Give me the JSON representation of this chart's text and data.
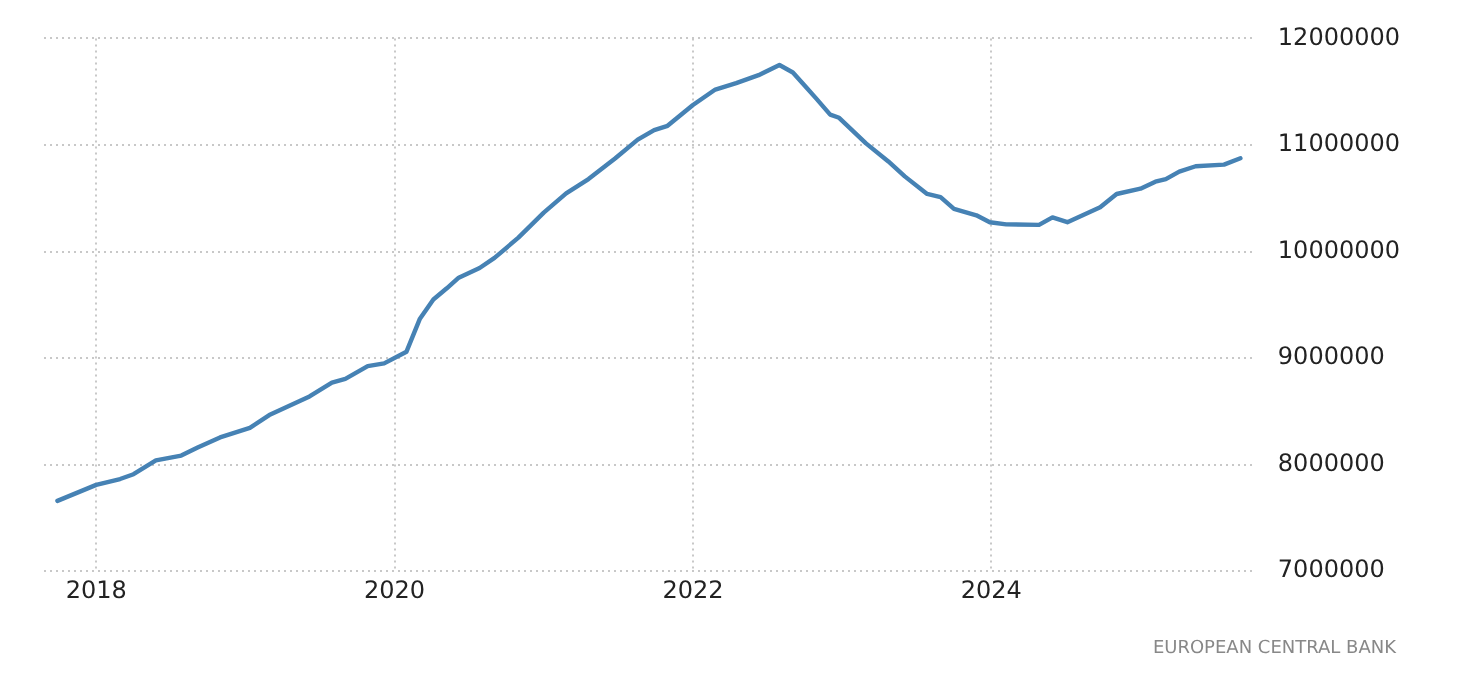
{
  "chart_data": {
    "type": "line",
    "x": [
      2017.74,
      2018.0,
      2018.16,
      2018.25,
      2018.4,
      2018.57,
      2018.68,
      2018.83,
      2019.03,
      2019.16,
      2019.43,
      2019.58,
      2019.67,
      2019.82,
      2019.93,
      2020.08,
      2020.17,
      2020.26,
      2020.35,
      2020.43,
      2020.57,
      2020.67,
      2020.83,
      2021.0,
      2021.15,
      2021.3,
      2021.48,
      2021.63,
      2021.74,
      2021.83,
      2022.0,
      2022.15,
      2022.29,
      2022.44,
      2022.58,
      2022.67,
      2022.75,
      2022.83,
      2022.92,
      2022.98,
      2023.16,
      2023.31,
      2023.42,
      2023.57,
      2023.66,
      2023.75,
      2023.9,
      2023.99,
      2024.1,
      2024.32,
      2024.41,
      2024.51,
      2024.73,
      2024.84,
      2025.0,
      2025.1,
      2025.17,
      2025.26,
      2025.37,
      2025.56,
      2025.67
    ],
    "series": [
      {
        "color": "#4682b4",
        "values": [
          7660000,
          7810000,
          7865000,
          7910000,
          8040000,
          8085000,
          8160000,
          8255000,
          8345000,
          8465000,
          8640000,
          8770000,
          8805000,
          8925000,
          8950000,
          9060000,
          9370000,
          9550000,
          9655000,
          9755000,
          9845000,
          9940000,
          10130000,
          10365000,
          10545000,
          10680000,
          10875000,
          11050000,
          11140000,
          11180000,
          11375000,
          11520000,
          11580000,
          11655000,
          11750000,
          11680000,
          11555000,
          11430000,
          11285000,
          11255000,
          11015000,
          10845000,
          10705000,
          10540000,
          10510000,
          10400000,
          10340000,
          10275000,
          10255000,
          10250000,
          10320000,
          10275000,
          10415000,
          10540000,
          10590000,
          10655000,
          10680000,
          10750000,
          10800000,
          10815000,
          10875000
        ]
      }
    ],
    "xlim": [
      2017.65,
      2025.76
    ],
    "xticks": [
      2018,
      2020,
      2022,
      2024
    ],
    "ylim": [
      7000000,
      12000000
    ],
    "yticks": [
      7000000,
      8000000,
      9000000,
      10000000,
      11000000,
      12000000
    ],
    "grid": true,
    "legend": false,
    "marker": "none",
    "line_style": "solid",
    "annotations": [
      "EUROPEAN CENTRAL BANK"
    ]
  }
}
